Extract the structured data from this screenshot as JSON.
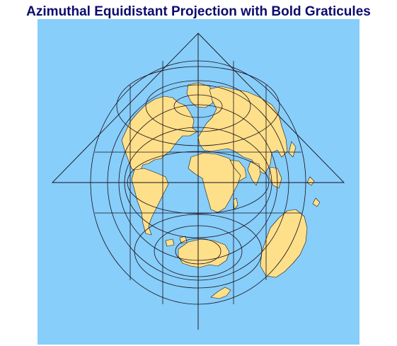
{
  "title": "Azimuthal Equidistant Projection with Bold Graticules",
  "colors": {
    "title": "#0b0b6e",
    "ocean": "#87cefa",
    "land": "#ffe08a",
    "lines": "#1b0f1a"
  },
  "map": {
    "projection": "azimuthal equidistant",
    "graticule": "bold",
    "features": [
      "north-america",
      "south-america",
      "greenland",
      "europe",
      "africa",
      "asia",
      "australia",
      "antarctica",
      "new-zealand",
      "arabia",
      "india",
      "southeast-asia",
      "islands"
    ]
  }
}
